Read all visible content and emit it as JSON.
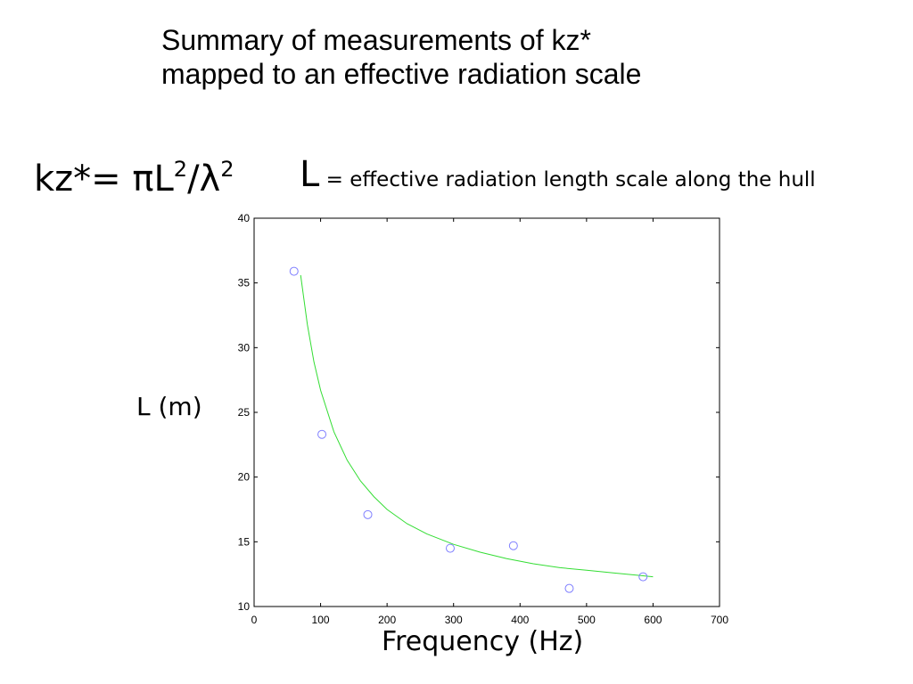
{
  "slide": {
    "title_line1": "Summary of measurements of kz*",
    "title_line2": "mapped to an effective radiation scale",
    "formula": {
      "lhs": "kz*= ",
      "pi": "π",
      "L": "L",
      "exp1": "2",
      "slash": "/",
      "lambda": "λ",
      "exp2": "2"
    },
    "definition": {
      "symbol": "L",
      "text": " = effective radiation length scale along the hull"
    }
  },
  "chart_data": {
    "type": "scatter",
    "xlabel": "Frequency (Hz)",
    "ylabel": "L (m)",
    "xlim": [
      0,
      700
    ],
    "ylim": [
      10,
      40
    ],
    "xticks": [
      0,
      100,
      200,
      300,
      400,
      500,
      600,
      700
    ],
    "yticks": [
      10,
      15,
      20,
      25,
      30,
      35,
      40
    ],
    "grid": false,
    "series": [
      {
        "kind": "points",
        "marker": "open-circle",
        "color": "#7f7fff",
        "x": [
          60,
          102,
          171,
          295,
          390,
          474,
          585
        ],
        "y": [
          35.9,
          23.3,
          17.1,
          14.5,
          14.7,
          11.4,
          12.3
        ]
      },
      {
        "kind": "fit-line",
        "color": "#33dd33",
        "x": [
          70,
          80,
          90,
          100,
          120,
          140,
          160,
          180,
          200,
          230,
          260,
          300,
          340,
          380,
          420,
          460,
          500,
          540,
          580,
          600
        ],
        "y": [
          35.6,
          31.8,
          28.9,
          26.7,
          23.5,
          21.3,
          19.7,
          18.5,
          17.5,
          16.4,
          15.6,
          14.8,
          14.2,
          13.7,
          13.3,
          13.0,
          12.8,
          12.6,
          12.4,
          12.3
        ]
      }
    ]
  }
}
